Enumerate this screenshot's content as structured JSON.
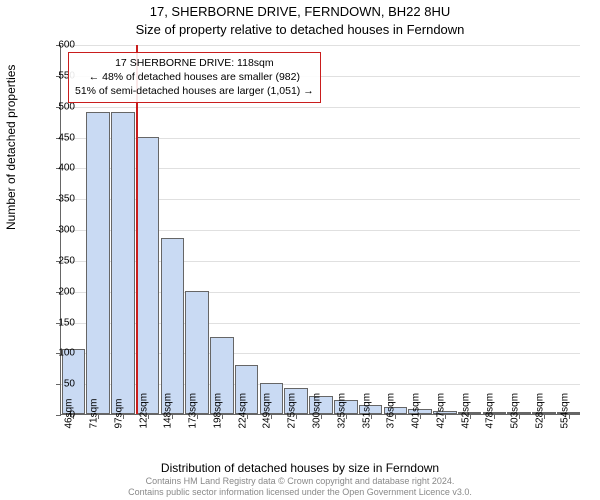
{
  "title_line1": "17, SHERBORNE DRIVE, FERNDOWN, BH22 8HU",
  "title_line2": "Size of property relative to detached houses in Ferndown",
  "ylabel": "Number of detached properties",
  "xlabel": "Distribution of detached houses by size in Ferndown",
  "footer_line1": "Contains HM Land Registry data © Crown copyright and database right 2024.",
  "footer_line2": "Contains public sector information licensed under the Open Government Licence v3.0.",
  "infobox": {
    "line1": "17 SHERBORNE DRIVE: 118sqm",
    "line2": "← 48% of detached houses are smaller (982)",
    "line3": "51% of semi-detached houses are larger (1,051) →"
  },
  "chart": {
    "type": "histogram",
    "background_color": "#ffffff",
    "grid_color": "#e0e0e0",
    "axis_color": "#666666",
    "bar_fill": "#c9daf3",
    "bar_stroke": "#666666",
    "property_line_color": "#c91d1d",
    "ylim": [
      0,
      600
    ],
    "ytick_step": 50,
    "bar_width_ratio": 0.95,
    "property_line_x_ratio": 0.145,
    "xticks": [
      "46sqm",
      "71sqm",
      "97sqm",
      "122sqm",
      "148sqm",
      "173sqm",
      "198sqm",
      "224sqm",
      "249sqm",
      "275sqm",
      "300sqm",
      "325sqm",
      "351sqm",
      "376sqm",
      "401sqm",
      "427sqm",
      "452sqm",
      "478sqm",
      "503sqm",
      "528sqm",
      "554sqm"
    ],
    "values": [
      105,
      490,
      490,
      450,
      285,
      200,
      125,
      80,
      50,
      42,
      30,
      22,
      15,
      12,
      8,
      5,
      3,
      2,
      2,
      1,
      1
    ]
  }
}
